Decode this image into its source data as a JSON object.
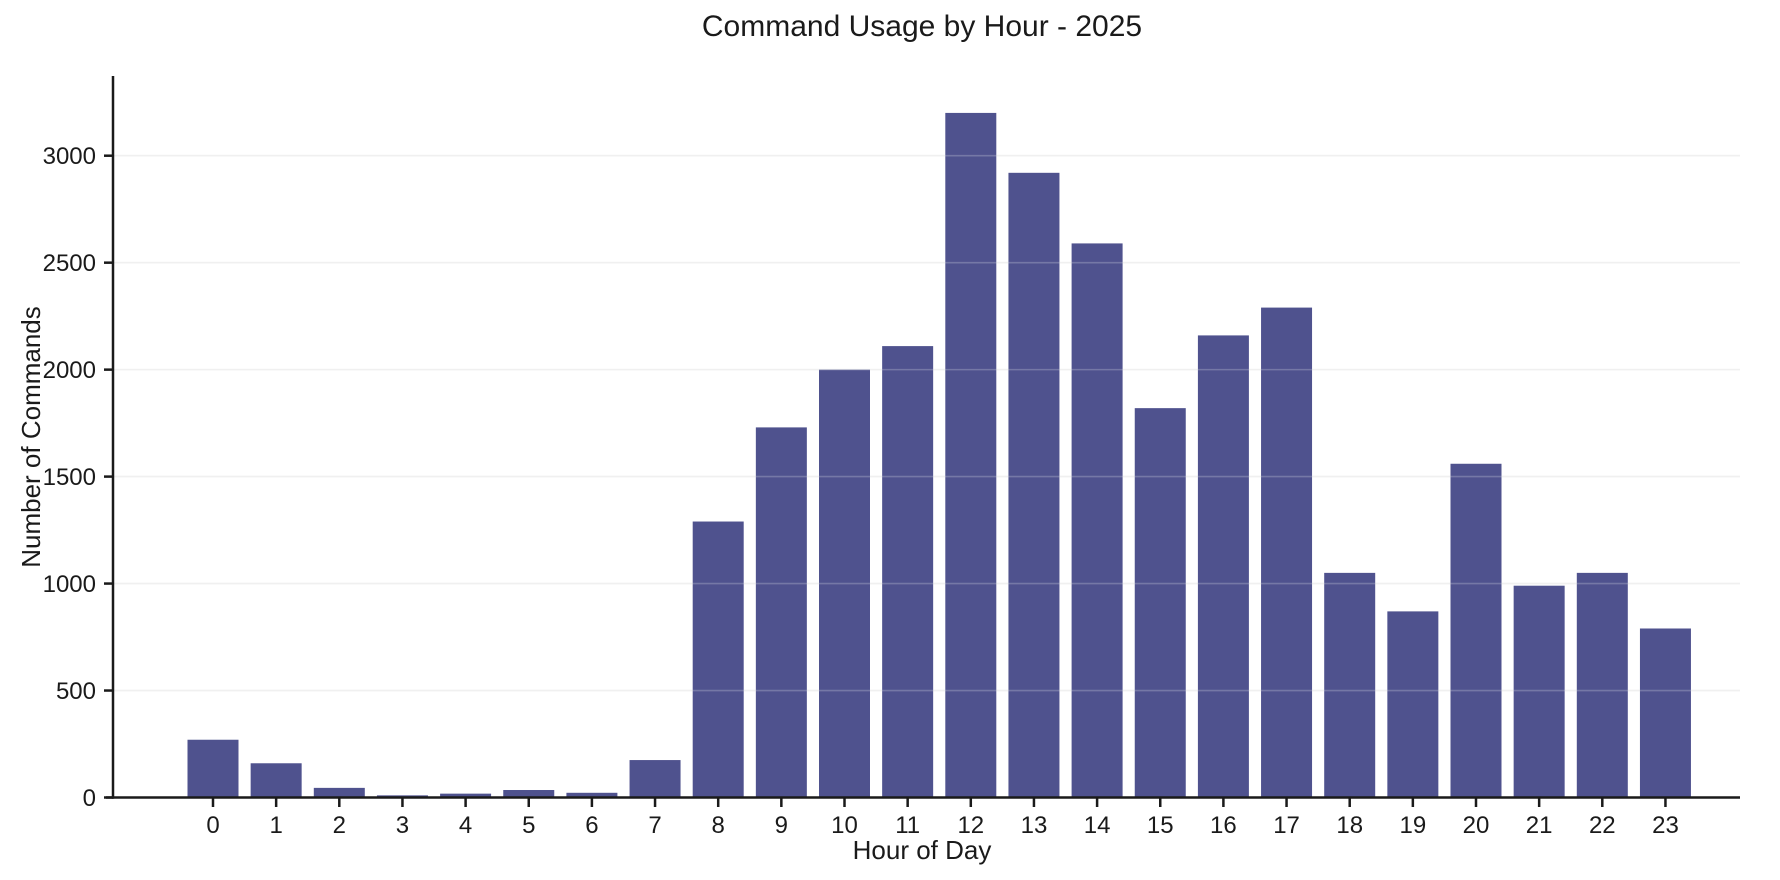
{
  "chart_data": {
    "type": "bar",
    "title": "Command Usage by Hour - 2025",
    "xlabel": "Hour of Day",
    "ylabel": "Number of Commands",
    "categories": [
      "0",
      "1",
      "2",
      "3",
      "4",
      "5",
      "6",
      "7",
      "8",
      "9",
      "10",
      "11",
      "12",
      "13",
      "14",
      "15",
      "16",
      "17",
      "18",
      "19",
      "20",
      "21",
      "22",
      "23"
    ],
    "values": [
      270,
      160,
      45,
      10,
      18,
      35,
      22,
      175,
      1290,
      1730,
      2000,
      2110,
      3200,
      2920,
      2590,
      1820,
      2160,
      2290,
      1050,
      870,
      1560,
      990,
      1050,
      790
    ],
    "yticks": [
      0,
      500,
      1000,
      1500,
      2000,
      2500,
      3000
    ],
    "ylim": [
      0,
      3390
    ],
    "grid": "horizontal",
    "legend": "none",
    "colors": {
      "bar": "#4F528E",
      "grid": "#ECECEC",
      "axis": "#1A1A1A",
      "text": "#1A1A1A",
      "background": "#FFFFFF"
    }
  }
}
